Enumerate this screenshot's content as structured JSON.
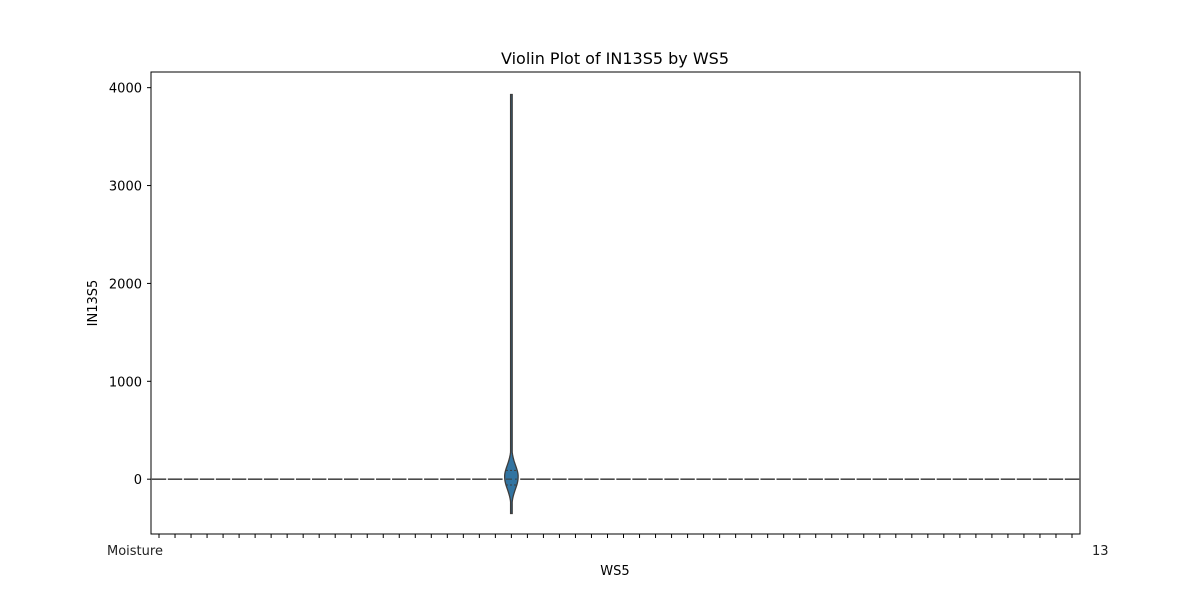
{
  "chart_data": {
    "type": "violin",
    "title": "Violin Plot of IN13S5 by WS5",
    "xlabel": "WS5",
    "ylabel": "IN13S5",
    "ylim": [
      -560,
      4160
    ],
    "yticks": [
      0,
      1000,
      2000,
      3000,
      4000
    ],
    "category_count": 58,
    "first_category_label": "Moisture",
    "last_category_label": "13",
    "highlighted_category_index": 22,
    "highlighted_violin": {
      "min": -350,
      "max": 3930,
      "median": 0,
      "q1": -60,
      "q3": 90,
      "max_half_width": 0.42
    },
    "flat_violin_value": 0,
    "grid": false,
    "colors": {
      "violin_fill": "#3274a1",
      "violin_stroke": "#3d3d3d",
      "flat_line": "#3d3d3d"
    }
  }
}
